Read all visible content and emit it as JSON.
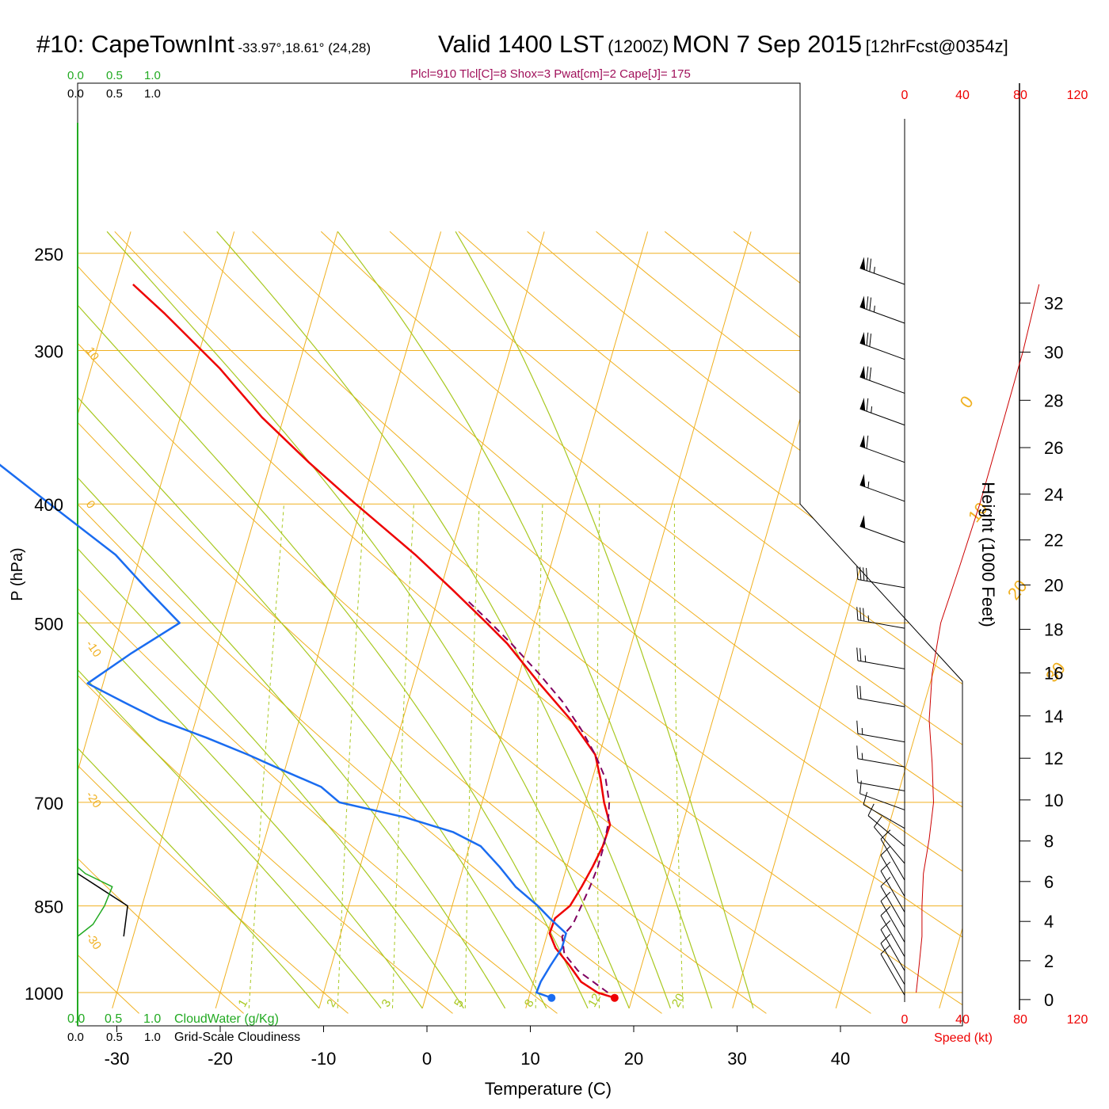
{
  "title": {
    "station": "#10: CapeTownInt",
    "coords": "-33.97°,18.61° (24,28)",
    "valid": "Valid 1400 LST",
    "utc": "(1200Z)",
    "date": "MON 7 Sep 2015",
    "forecast": "[12hrFcst@0354z]"
  },
  "indices": "Plcl=910 Tlcl[C]=8 Shox=3 Pwat[cm]=2 Cape[J]= 175",
  "top_scale": {
    "green_labels": [
      "0.0",
      "0.5",
      "1.0"
    ],
    "black_labels": [
      "0.0",
      "0.5",
      "1.0"
    ]
  },
  "bottom_scale": {
    "green_labels": [
      "0.0",
      "0.5",
      "1.0"
    ],
    "green_title": "CloudWater (g/Kg)",
    "black_labels": [
      "0.0",
      "0.5",
      "1.0"
    ],
    "black_title": "Grid-Scale Cloudiness"
  },
  "speed_scale": {
    "labels": [
      "0",
      "40",
      "80",
      "120"
    ],
    "title": "Speed (kt)"
  },
  "colors": {
    "temperature": "#ee0000",
    "dewpoint": "#1a6cf0",
    "parcel": "#800060",
    "isotherm": "#f0b020",
    "dry_adiabat": "#a8c820",
    "mixing_ratio": "#a8c820",
    "cloudwater": "#22aa22",
    "speed": "#cc0000",
    "indices": "#a0105a"
  },
  "chart_data": {
    "type": "line",
    "xlabel": "Temperature (C)",
    "ylabel": "P (hPa)",
    "y2label": "Height (1000 Feet)",
    "xticks": [
      -30,
      -20,
      -10,
      0,
      10,
      20,
      30,
      40
    ],
    "yticks": [
      250,
      300,
      400,
      500,
      700,
      850,
      1000
    ],
    "height_ticks": [
      0,
      2,
      4,
      6,
      8,
      10,
      12,
      14,
      16,
      18,
      20,
      22,
      24,
      26,
      28,
      30,
      32
    ],
    "xlim": [
      -33,
      36
    ],
    "ylim": [
      1030,
      250
    ],
    "isotherm_labels": [
      {
        "text": "10",
        "t": -33,
        "p": 300
      },
      {
        "text": "0",
        "t": -33,
        "p": 400
      },
      {
        "text": "-10",
        "t": -33,
        "p": 520
      },
      {
        "text": "-20",
        "t": -33,
        "p": 690
      },
      {
        "text": "-30",
        "t": -33,
        "p": 900
      }
    ],
    "isotherm_labels_right": [
      {
        "text": "0",
        "t": 36,
        "p": 335
      },
      {
        "text": "10",
        "t": 40,
        "p": 415
      },
      {
        "text": "20",
        "t": 46,
        "p": 480
      },
      {
        "text": "30",
        "t": 52,
        "p": 560
      }
    ],
    "mixing_ratio_labels": [
      "1",
      "2",
      "3",
      "5",
      "8",
      "12",
      "20"
    ],
    "mixing_ratios": [
      1,
      2,
      3,
      5,
      8,
      12,
      20
    ],
    "series": [
      {
        "name": "Temperature",
        "p": [
          1010,
          1000,
          980,
          950,
          920,
          895,
          870,
          850,
          820,
          790,
          760,
          730,
          700,
          670,
          640,
          600,
          560,
          520,
          500,
          470,
          440,
          400,
          370,
          340,
          310,
          280,
          265
        ],
        "t": [
          18.3,
          16.5,
          14.6,
          13.0,
          11.2,
          10.2,
          10.3,
          11.4,
          12.0,
          12.5,
          12.9,
          13.0,
          11.8,
          10.8,
          9.6,
          6.3,
          2.2,
          -2.0,
          -4.6,
          -8.8,
          -13.4,
          -20.6,
          -26.3,
          -32.1,
          -37.6,
          -44.4,
          -48.3
        ]
      },
      {
        "name": "Dewpoint",
        "p": [
          1010,
          1000,
          980,
          950,
          920,
          895,
          870,
          850,
          820,
          790,
          760,
          740,
          720,
          700,
          680,
          660,
          640,
          620,
          600,
          580,
          560,
          530,
          500,
          470,
          440,
          400,
          370,
          345,
          330,
          300,
          280,
          265
        ],
        "t": [
          12.2,
          10.6,
          10.7,
          11.2,
          11.8,
          11.8,
          9.8,
          8.3,
          5.6,
          3.5,
          1.1,
          -2.0,
          -7.0,
          -13.8,
          -16.0,
          -20.0,
          -24.0,
          -28.5,
          -33.5,
          -37.5,
          -41.5,
          -38.2,
          -34.3,
          -38.3,
          -42.4,
          -50.2,
          -56.5,
          -62.0,
          -66.5,
          -72.0,
          -77.0,
          -80.0
        ]
      },
      {
        "name": "Parcel",
        "p": [
          1000,
          960,
          930,
          900,
          880,
          850,
          820,
          790,
          760,
          730,
          700,
          670,
          640,
          610,
          580,
          550,
          520,
          500,
          480
        ],
        "t": [
          17.5,
          14.0,
          12.2,
          11.5,
          12.2,
          12.5,
          12.8,
          13.0,
          13.0,
          12.8,
          12.3,
          11.3,
          9.6,
          7.5,
          5.0,
          1.9,
          -1.6,
          -4.2,
          -7.0
        ]
      }
    ],
    "markers": [
      {
        "name": "surface-temperature",
        "t": 18.3,
        "p": 1010
      },
      {
        "name": "surface-dewpoint",
        "t": 12.2,
        "p": 1010
      }
    ],
    "height_profile": {
      "p": [
        1000,
        950,
        900,
        850,
        800,
        750,
        700,
        650,
        600,
        550,
        500,
        450,
        400,
        350,
        300,
        265
      ],
      "speed_kt": [
        8,
        10,
        12,
        12,
        13,
        17,
        20,
        19,
        17,
        19,
        25,
        38,
        52,
        66,
        82,
        93
      ]
    },
    "cloudiness": {
      "p": [
        800,
        850,
        900
      ],
      "value": [
        0.0,
        0.65,
        0.6
      ]
    },
    "cloudwater": {
      "p": [
        790,
        800,
        820,
        850,
        880,
        900
      ],
      "value": [
        0.0,
        0.1,
        0.45,
        0.35,
        0.2,
        0.0
      ]
    },
    "wind_barbs": {
      "p": [
        265,
        285,
        305,
        325,
        345,
        370,
        398,
        430,
        468,
        505,
        545,
        585,
        625,
        655,
        685,
        710,
        735,
        760,
        785,
        810,
        835,
        860,
        885,
        910,
        935,
        960,
        985,
        1005
      ],
      "speed_kt": [
        75,
        75,
        70,
        70,
        65,
        60,
        55,
        50,
        40,
        35,
        25,
        20,
        15,
        15,
        10,
        10,
        10,
        10,
        10,
        10,
        10,
        10,
        10,
        10,
        10,
        10,
        10,
        10
      ],
      "dir_deg": [
        290,
        290,
        290,
        290,
        290,
        290,
        290,
        290,
        280,
        280,
        280,
        280,
        280,
        280,
        280,
        290,
        300,
        310,
        320,
        330,
        330,
        330,
        330,
        330,
        330,
        330,
        330,
        330
      ]
    }
  }
}
